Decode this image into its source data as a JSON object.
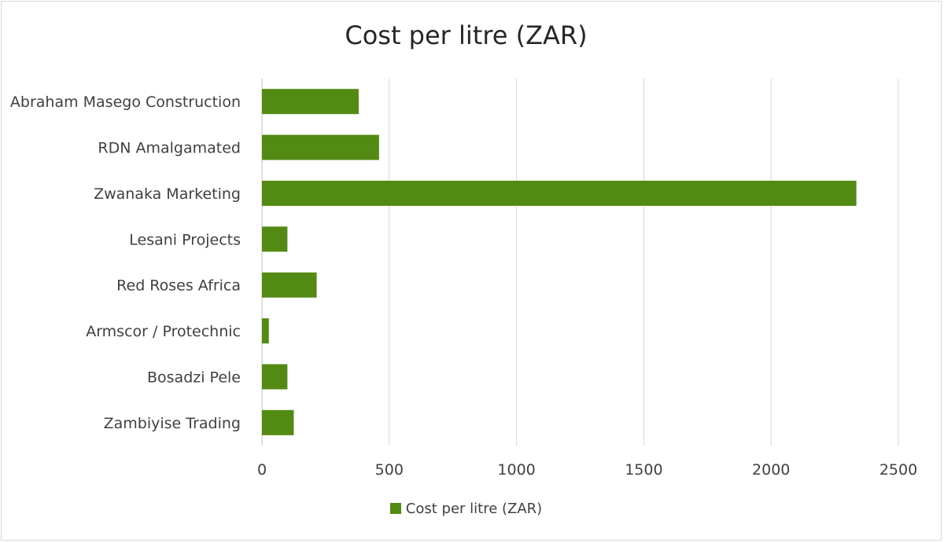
{
  "chart_data": {
    "type": "bar",
    "orientation": "horizontal",
    "title": "Cost per litre (ZAR)",
    "categories": [
      "Abraham Masego Construction",
      "RDN Amalgamated",
      "Zwanaka Marketing",
      "Lesani Projects",
      "Red Roses Africa",
      "Armscor / Protechnic",
      "Bosadzi Pele",
      "Zambiyise Trading"
    ],
    "series": [
      {
        "name": "Cost per litre (ZAR)",
        "values": [
          380,
          460,
          2335,
          100,
          215,
          27,
          100,
          125
        ]
      }
    ],
    "xlim": [
      0,
      2500
    ],
    "xticks": [
      "0",
      "500",
      "1000",
      "1500",
      "2000",
      "2500"
    ],
    "grid": "vertical",
    "legend_position": "bottom",
    "bar_color": "#538a13"
  }
}
